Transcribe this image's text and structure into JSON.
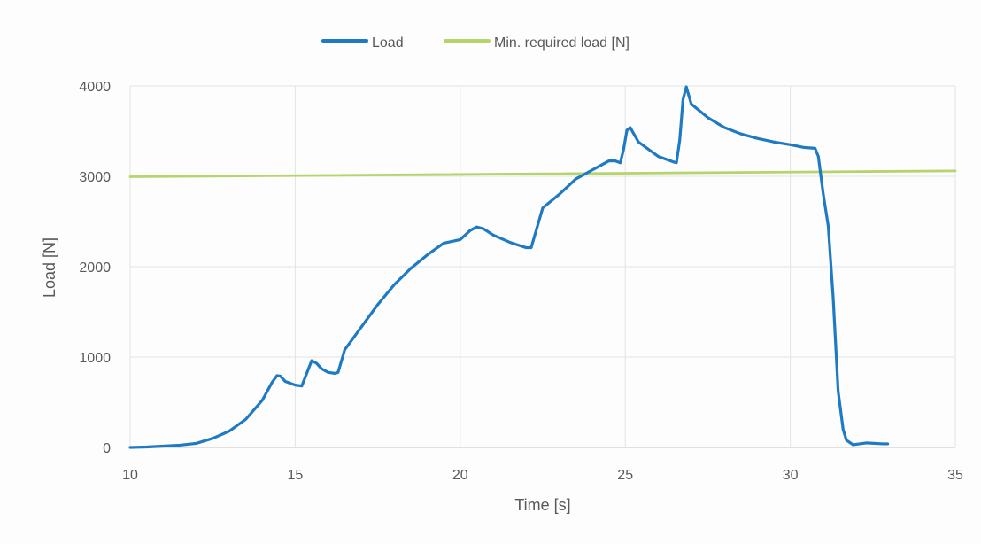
{
  "chart_data": {
    "type": "line",
    "title": "",
    "xlabel": "Time [s]",
    "ylabel": "Load [N]",
    "xlim": [
      10,
      35
    ],
    "ylim": [
      0,
      4000
    ],
    "x_ticks": [
      10,
      15,
      20,
      25,
      30,
      35
    ],
    "y_ticks": [
      0,
      1000,
      2000,
      3000,
      4000
    ],
    "grid": true,
    "legend_position": "top",
    "series": [
      {
        "name": "Load",
        "color": "#1f7ac4",
        "points": [
          [
            10.0,
            0
          ],
          [
            10.5,
            5
          ],
          [
            11.0,
            15
          ],
          [
            11.5,
            25
          ],
          [
            12.0,
            45
          ],
          [
            12.5,
            100
          ],
          [
            13.0,
            180
          ],
          [
            13.5,
            310
          ],
          [
            14.0,
            520
          ],
          [
            14.3,
            720
          ],
          [
            14.45,
            795
          ],
          [
            14.55,
            790
          ],
          [
            14.7,
            730
          ],
          [
            15.0,
            690
          ],
          [
            15.2,
            680
          ],
          [
            15.35,
            820
          ],
          [
            15.5,
            960
          ],
          [
            15.65,
            930
          ],
          [
            15.8,
            870
          ],
          [
            16.0,
            830
          ],
          [
            16.2,
            820
          ],
          [
            16.3,
            830
          ],
          [
            16.5,
            1080
          ],
          [
            17.0,
            1330
          ],
          [
            17.5,
            1580
          ],
          [
            18.0,
            1800
          ],
          [
            18.5,
            1980
          ],
          [
            19.0,
            2130
          ],
          [
            19.5,
            2260
          ],
          [
            20.0,
            2300
          ],
          [
            20.3,
            2400
          ],
          [
            20.5,
            2440
          ],
          [
            20.7,
            2420
          ],
          [
            21.0,
            2350
          ],
          [
            21.5,
            2270
          ],
          [
            22.0,
            2210
          ],
          [
            22.15,
            2210
          ],
          [
            22.3,
            2400
          ],
          [
            22.5,
            2650
          ],
          [
            23.0,
            2800
          ],
          [
            23.5,
            2970
          ],
          [
            24.0,
            3070
          ],
          [
            24.5,
            3170
          ],
          [
            24.7,
            3170
          ],
          [
            24.85,
            3150
          ],
          [
            24.95,
            3300
          ],
          [
            25.05,
            3510
          ],
          [
            25.15,
            3540
          ],
          [
            25.4,
            3380
          ],
          [
            26.0,
            3220
          ],
          [
            26.45,
            3160
          ],
          [
            26.55,
            3150
          ],
          [
            26.65,
            3400
          ],
          [
            26.75,
            3850
          ],
          [
            26.85,
            3990
          ],
          [
            27.0,
            3800
          ],
          [
            27.5,
            3650
          ],
          [
            28.0,
            3540
          ],
          [
            28.5,
            3470
          ],
          [
            29.0,
            3420
          ],
          [
            29.5,
            3380
          ],
          [
            30.0,
            3350
          ],
          [
            30.4,
            3320
          ],
          [
            30.75,
            3310
          ],
          [
            30.85,
            3220
          ],
          [
            31.0,
            2800
          ],
          [
            31.15,
            2450
          ],
          [
            31.3,
            1650
          ],
          [
            31.45,
            620
          ],
          [
            31.6,
            200
          ],
          [
            31.7,
            80
          ],
          [
            31.9,
            30
          ],
          [
            32.0,
            35
          ],
          [
            32.3,
            50
          ],
          [
            32.8,
            40
          ],
          [
            32.95,
            40
          ]
        ]
      },
      {
        "name": "Min. required load [N]",
        "color": "#b5d56a",
        "points": [
          [
            10.0,
            2995
          ],
          [
            35.0,
            3060
          ]
        ]
      }
    ]
  }
}
